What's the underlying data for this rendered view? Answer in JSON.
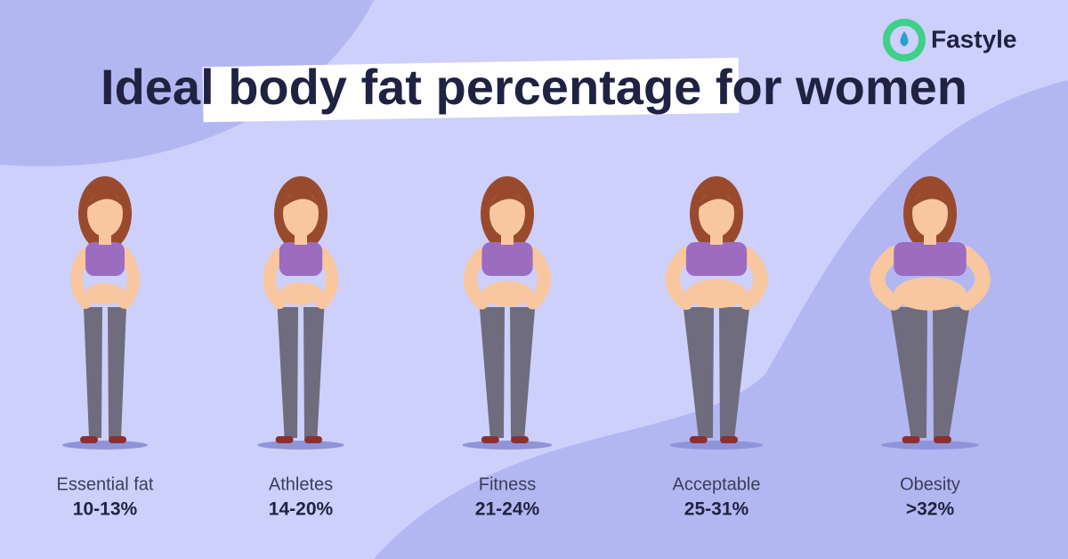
{
  "brand": "Fastyle",
  "title": "Ideal body fat percentage for women",
  "categories": [
    {
      "label": "Essential fat",
      "range": "10-13%"
    },
    {
      "label": "Athletes",
      "range": "14-20%"
    },
    {
      "label": "Fitness",
      "range": "21-24%"
    },
    {
      "label": "Acceptable",
      "range": "25-31%"
    },
    {
      "label": "Obesity",
      "range": ">32%"
    }
  ]
}
